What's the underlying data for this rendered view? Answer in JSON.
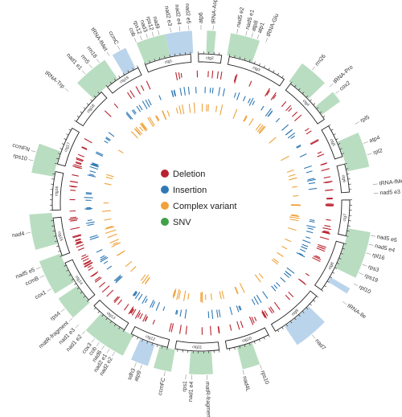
{
  "legend": [
    {
      "label": "Deletion",
      "color": "#b8232f"
    },
    {
      "label": "Insertion",
      "color": "#2f78b5"
    },
    {
      "label": "Complex variant",
      "color": "#f0a23a"
    },
    {
      "label": "SNV",
      "color": "#43a047"
    }
  ],
  "colors": {
    "highlight_green": "#a8d5b0",
    "highlight_blue": "#a9c9e6",
    "ideogram": "#222222"
  },
  "genes": [
    {
      "label": "nad2 e3",
      "angle": -10
    },
    {
      "label": "nad2 e4",
      "angle": -7
    },
    {
      "label": "nad2 e5",
      "angle": -4
    },
    {
      "label": "atp6",
      "angle": 0
    },
    {
      "label": "tRNA-Asp",
      "angle": 4
    },
    {
      "label": "nad5 e2",
      "angle": 12
    },
    {
      "label": "nad5 e1",
      "angle": 15
    },
    {
      "label": "atp8",
      "angle": 17
    },
    {
      "label": "atp1",
      "angle": 19
    },
    {
      "label": "tRNA-Glu",
      "angle": 22
    },
    {
      "label": "rrn26",
      "angle": 40
    },
    {
      "label": "tRNA-Pro",
      "angle": 48
    },
    {
      "label": "cox2",
      "angle": 51
    },
    {
      "label": "rpl5",
      "angle": 63
    },
    {
      "label": "atp4",
      "angle": 70
    },
    {
      "label": "rpl2",
      "angle": 74
    },
    {
      "label": "tRNA-fMet",
      "angle": 84
    },
    {
      "label": "nad5 e3",
      "angle": 87
    },
    {
      "label": "nad5 e5",
      "angle": 101
    },
    {
      "label": "nad5 e4",
      "angle": 104
    },
    {
      "label": "rpl16",
      "angle": 107
    },
    {
      "label": "rps3",
      "angle": 111
    },
    {
      "label": "rps19",
      "angle": 114
    },
    {
      "label": "rpl10",
      "angle": 118
    },
    {
      "label": "tRNA-Ile",
      "angle": 125
    },
    {
      "label": "nad7",
      "angle": 140
    },
    {
      "label": "rps10",
      "angle": 160
    },
    {
      "label": "nad4L",
      "angle": 166
    },
    {
      "label": "matR-fragment",
      "angle": 178
    },
    {
      "label": "nad1 e4",
      "angle": 183
    },
    {
      "label": "rps1",
      "angle": 185
    },
    {
      "label": "ccmFC",
      "angle": 192
    },
    {
      "label": "atp9",
      "angle": 200
    },
    {
      "label": "sdh3",
      "angle": 202
    },
    {
      "label": "nad2 e2",
      "angle": 210
    },
    {
      "label": "nad2 e1",
      "angle": 212
    },
    {
      "label": "nad6",
      "angle": 214
    },
    {
      "label": "cob",
      "angle": 216
    },
    {
      "label": "cox3",
      "angle": 218
    },
    {
      "label": "nad1 e2",
      "angle": 222
    },
    {
      "label": "nad1 e3",
      "angle": 225
    },
    {
      "label": "matR-fragment",
      "angle": 228
    },
    {
      "label": "rps4",
      "angle": 232
    },
    {
      "label": "cox1",
      "angle": 240
    },
    {
      "label": "ccmB",
      "angle": 245
    },
    {
      "label": "nad5 e5",
      "angle": 248
    },
    {
      "label": "nad4",
      "angle": 260
    },
    {
      "label": "rps10",
      "angle": 284
    },
    {
      "label": "ccmFN",
      "angle": 287
    },
    {
      "label": "tRNA-Trp",
      "angle": 310
    },
    {
      "label": "nad1 e1",
      "angle": 318
    },
    {
      "label": "rrn5",
      "angle": 321
    },
    {
      "label": "rrn18",
      "angle": 324
    },
    {
      "label": "tRNA-fMet",
      "angle": 328
    },
    {
      "label": "ccmC",
      "angle": 332
    },
    {
      "label": "cob",
      "angle": 338
    },
    {
      "label": "rps12",
      "angle": 340
    },
    {
      "label": "nad3",
      "angle": 342
    },
    {
      "label": "rps12",
      "angle": 344
    },
    {
      "label": "nad9",
      "angle": 346
    }
  ],
  "highlights": [
    {
      "start": -12,
      "end": -3,
      "color": "blue"
    },
    {
      "start": 2,
      "end": 5,
      "color": "green"
    },
    {
      "start": 10,
      "end": 20,
      "color": "green"
    },
    {
      "start": 36,
      "end": 46,
      "color": "green"
    },
    {
      "start": 50,
      "end": 54,
      "color": "green"
    },
    {
      "start": 66,
      "end": 78,
      "color": "green"
    },
    {
      "start": 100,
      "end": 116,
      "color": "green"
    },
    {
      "start": 120,
      "end": 122,
      "color": "blue"
    },
    {
      "start": 134,
      "end": 146,
      "color": "blue"
    },
    {
      "start": 160,
      "end": 166,
      "color": "green"
    },
    {
      "start": 176,
      "end": 184,
      "color": "green"
    },
    {
      "start": 190,
      "end": 196,
      "color": "green"
    },
    {
      "start": 198,
      "end": 204,
      "color": "blue"
    },
    {
      "start": 207,
      "end": 222,
      "color": "green"
    },
    {
      "start": 228,
      "end": 236,
      "color": "green"
    },
    {
      "start": 238,
      "end": 250,
      "color": "green"
    },
    {
      "start": 254,
      "end": 266,
      "color": "green"
    },
    {
      "start": 280,
      "end": 290,
      "color": "green"
    },
    {
      "start": 314,
      "end": 326,
      "color": "green"
    },
    {
      "start": 329,
      "end": 334,
      "color": "blue"
    },
    {
      "start": 338,
      "end": 348,
      "color": "green"
    }
  ],
  "contigs": [
    {
      "label": "ctg1",
      "start": -22,
      "end": -4
    },
    {
      "label": "ctg2",
      "start": -1,
      "end": 8
    },
    {
      "label": "ctg3",
      "start": 11,
      "end": 34
    },
    {
      "label": "ctg4",
      "start": 37,
      "end": 56
    },
    {
      "label": "ctg5",
      "start": 59,
      "end": 72
    },
    {
      "label": "ctg6",
      "start": 75,
      "end": 86
    },
    {
      "label": "ctg7",
      "start": 89,
      "end": 103
    },
    {
      "label": "ctg8",
      "start": 106,
      "end": 126
    },
    {
      "label": "ctg9",
      "start": 129,
      "end": 150
    },
    {
      "label": "ctg10",
      "start": 153,
      "end": 170
    },
    {
      "label": "ctg11",
      "start": 173,
      "end": 190
    },
    {
      "label": "ctg12",
      "start": 193,
      "end": 208
    },
    {
      "label": "ctg13",
      "start": 211,
      "end": 226
    },
    {
      "label": "ctg14",
      "start": 229,
      "end": 246
    },
    {
      "label": "ctg15",
      "start": 249,
      "end": 264
    },
    {
      "label": "ctg16",
      "start": 267,
      "end": 282
    },
    {
      "label": "ctg17",
      "start": 285,
      "end": 300
    },
    {
      "label": "ctg18",
      "start": 303,
      "end": 318
    },
    {
      "label": "ctg19",
      "start": 321,
      "end": 335
    }
  ]
}
